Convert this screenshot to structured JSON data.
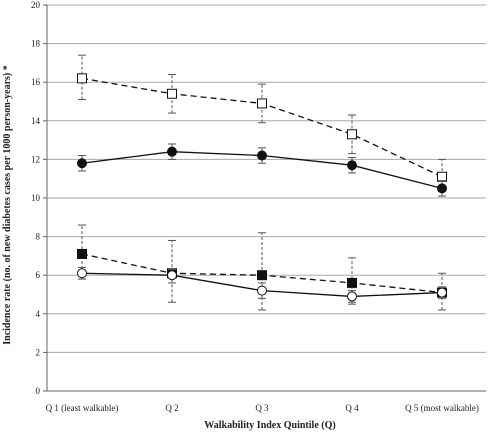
{
  "chart_data": {
    "type": "line",
    "title": "",
    "xlabel": "Walkability Index Quintile (Q)",
    "ylabel": "Incidence rate (no. of new diabetes cases per 1000 person-years) *",
    "categories": [
      "Q 1 (least walkable)",
      "Q 2",
      "Q 3",
      "Q 4",
      "Q 5 (most walkable)"
    ],
    "ylim": [
      0,
      20
    ],
    "yticks": [
      0,
      2,
      4,
      6,
      8,
      10,
      12,
      14,
      16,
      18,
      20
    ],
    "grid": "horizontal",
    "legend": "none",
    "series": [
      {
        "marker": "open-square",
        "line": "dashed",
        "values": [
          16.2,
          15.4,
          14.9,
          13.3,
          11.1
        ],
        "error_low": [
          15.1,
          14.4,
          13.9,
          12.3,
          10.1
        ],
        "error_high": [
          17.4,
          16.4,
          15.9,
          14.3,
          12.0
        ]
      },
      {
        "marker": "filled-circle",
        "line": "solid",
        "values": [
          11.8,
          12.4,
          12.2,
          11.7,
          10.5
        ],
        "error_low": [
          11.4,
          12.0,
          11.8,
          11.3,
          10.1
        ],
        "error_high": [
          12.2,
          12.8,
          12.6,
          12.1,
          10.9
        ]
      },
      {
        "marker": "filled-square",
        "line": "dashed",
        "values": [
          7.1,
          6.1,
          6.0,
          5.6,
          5.1
        ],
        "error_low": [
          5.8,
          4.6,
          4.2,
          4.5,
          4.2
        ],
        "error_high": [
          8.6,
          7.8,
          8.2,
          6.9,
          6.1
        ]
      },
      {
        "marker": "open-circle",
        "line": "solid",
        "values": [
          6.1,
          6.0,
          5.2,
          4.9,
          5.1
        ],
        "error_low": [
          5.8,
          5.6,
          4.8,
          4.6,
          4.8
        ],
        "error_high": [
          6.4,
          6.3,
          5.6,
          5.2,
          5.4
        ]
      }
    ]
  }
}
